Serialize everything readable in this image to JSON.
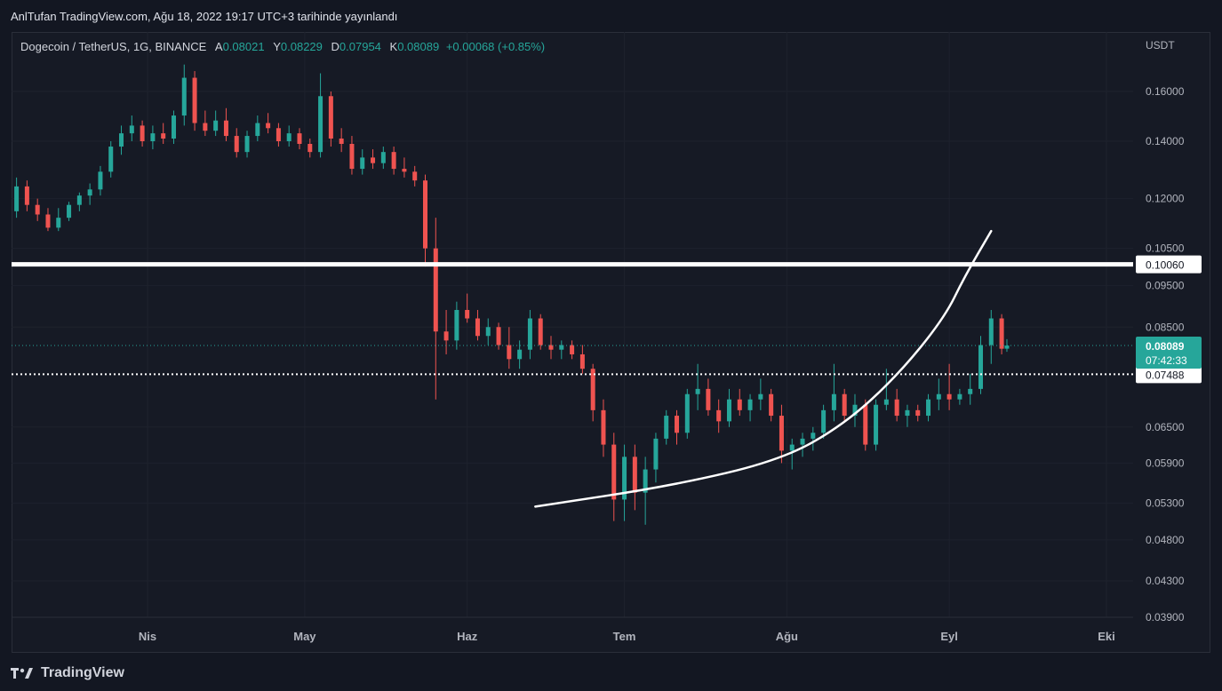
{
  "header": {
    "publisher_text": "AnlTufan TradingView.com, Ağu 18, 2022 19:17 UTC+3 tarihinde yayınlandı"
  },
  "legend": {
    "symbol": "Dogecoin / TetherUS, 1G, BINANCE",
    "open_label": "A",
    "open": "0.08021",
    "high_label": "Y",
    "high": "0.08229",
    "low_label": "D",
    "low": "0.07954",
    "close_label": "K",
    "close": "0.08089",
    "change": "+0.00068 (+0.85%)"
  },
  "footer": {
    "brand": "TradingView"
  },
  "colors": {
    "up": "#26a69a",
    "down": "#ef5350",
    "background": "#131722",
    "grid": "#1e222d",
    "line": "#ffffff"
  },
  "chart_data": {
    "type": "candlestick",
    "title": "Dogecoin / TetherUS, 1G, BINANCE",
    "y_axis_unit": "USDT",
    "y_scale": "log",
    "y_ticks": [
      "0.16000",
      "0.14000",
      "0.12000",
      "0.10500",
      "0.09500",
      "0.08500",
      "0.06500",
      "0.05900",
      "0.05300",
      "0.04800",
      "0.04300",
      "0.03900"
    ],
    "x_ticks": [
      "Nis",
      "May",
      "Haz",
      "Tem",
      "Ağu",
      "Eyl",
      "Eki"
    ],
    "x_tick_dates": [
      "2022-04-01",
      "2022-05-01",
      "2022-06-01",
      "2022-07-01",
      "2022-08-01",
      "2022-09-01",
      "2022-10-01"
    ],
    "horizontal_lines": [
      {
        "price": 0.1006,
        "label": "0.10060",
        "style": "solid"
      },
      {
        "price": 0.07488,
        "label": "0.07488",
        "style": "dotted"
      }
    ],
    "last_price": {
      "price": 0.08089,
      "label": "0.08089",
      "countdown": "07:42:33"
    },
    "curve_annotation": [
      {
        "date": "2022-06-14",
        "price": 0.0525
      },
      {
        "date": "2022-07-10",
        "price": 0.0555
      },
      {
        "date": "2022-07-31",
        "price": 0.0595
      },
      {
        "date": "2022-08-12",
        "price": 0.0655
      },
      {
        "date": "2022-08-22",
        "price": 0.0745
      },
      {
        "date": "2022-08-31",
        "price": 0.087
      },
      {
        "date": "2022-09-04",
        "price": 0.0975
      },
      {
        "date": "2022-09-09",
        "price": 0.11
      }
    ],
    "candles": [
      {
        "date": "2022-03-01",
        "o": 0.128,
        "h": 0.131,
        "l": 0.123,
        "c": 0.125
      },
      {
        "date": "2022-03-03",
        "o": 0.125,
        "h": 0.127,
        "l": 0.118,
        "c": 0.12
      },
      {
        "date": "2022-03-05",
        "o": 0.12,
        "h": 0.124,
        "l": 0.114,
        "c": 0.116
      },
      {
        "date": "2022-03-07",
        "o": 0.116,
        "h": 0.127,
        "l": 0.114,
        "c": 0.124
      },
      {
        "date": "2022-03-09",
        "o": 0.124,
        "h": 0.126,
        "l": 0.116,
        "c": 0.118
      },
      {
        "date": "2022-03-11",
        "o": 0.118,
        "h": 0.12,
        "l": 0.113,
        "c": 0.115
      },
      {
        "date": "2022-03-13",
        "o": 0.115,
        "h": 0.117,
        "l": 0.11,
        "c": 0.111
      },
      {
        "date": "2022-03-15",
        "o": 0.111,
        "h": 0.117,
        "l": 0.11,
        "c": 0.114
      },
      {
        "date": "2022-03-17",
        "o": 0.114,
        "h": 0.119,
        "l": 0.113,
        "c": 0.118
      },
      {
        "date": "2022-03-19",
        "o": 0.118,
        "h": 0.122,
        "l": 0.116,
        "c": 0.121
      },
      {
        "date": "2022-03-21",
        "o": 0.121,
        "h": 0.125,
        "l": 0.118,
        "c": 0.123
      },
      {
        "date": "2022-03-23",
        "o": 0.123,
        "h": 0.131,
        "l": 0.121,
        "c": 0.129
      },
      {
        "date": "2022-03-25",
        "o": 0.129,
        "h": 0.14,
        "l": 0.127,
        "c": 0.138
      },
      {
        "date": "2022-03-27",
        "o": 0.138,
        "h": 0.146,
        "l": 0.135,
        "c": 0.143
      },
      {
        "date": "2022-03-29",
        "o": 0.143,
        "h": 0.15,
        "l": 0.14,
        "c": 0.146
      },
      {
        "date": "2022-03-31",
        "o": 0.146,
        "h": 0.148,
        "l": 0.138,
        "c": 0.14
      },
      {
        "date": "2022-04-02",
        "o": 0.14,
        "h": 0.146,
        "l": 0.137,
        "c": 0.143
      },
      {
        "date": "2022-04-04",
        "o": 0.143,
        "h": 0.147,
        "l": 0.139,
        "c": 0.141
      },
      {
        "date": "2022-04-06",
        "o": 0.141,
        "h": 0.152,
        "l": 0.139,
        "c": 0.15
      },
      {
        "date": "2022-04-08",
        "o": 0.15,
        "h": 0.172,
        "l": 0.146,
        "c": 0.166
      },
      {
        "date": "2022-04-10",
        "o": 0.166,
        "h": 0.169,
        "l": 0.144,
        "c": 0.147
      },
      {
        "date": "2022-04-12",
        "o": 0.147,
        "h": 0.152,
        "l": 0.142,
        "c": 0.144
      },
      {
        "date": "2022-04-14",
        "o": 0.144,
        "h": 0.152,
        "l": 0.142,
        "c": 0.148
      },
      {
        "date": "2022-04-16",
        "o": 0.148,
        "h": 0.153,
        "l": 0.14,
        "c": 0.142
      },
      {
        "date": "2022-04-18",
        "o": 0.142,
        "h": 0.145,
        "l": 0.134,
        "c": 0.136
      },
      {
        "date": "2022-04-20",
        "o": 0.136,
        "h": 0.144,
        "l": 0.134,
        "c": 0.142
      },
      {
        "date": "2022-04-22",
        "o": 0.142,
        "h": 0.15,
        "l": 0.14,
        "c": 0.147
      },
      {
        "date": "2022-04-24",
        "o": 0.147,
        "h": 0.151,
        "l": 0.143,
        "c": 0.145
      },
      {
        "date": "2022-04-26",
        "o": 0.145,
        "h": 0.147,
        "l": 0.138,
        "c": 0.14
      },
      {
        "date": "2022-04-28",
        "o": 0.14,
        "h": 0.146,
        "l": 0.138,
        "c": 0.143
      },
      {
        "date": "2022-04-30",
        "o": 0.143,
        "h": 0.145,
        "l": 0.137,
        "c": 0.139
      },
      {
        "date": "2022-05-02",
        "o": 0.139,
        "h": 0.141,
        "l": 0.134,
        "c": 0.136
      },
      {
        "date": "2022-05-04",
        "o": 0.136,
        "h": 0.168,
        "l": 0.134,
        "c": 0.158
      },
      {
        "date": "2022-05-06",
        "o": 0.158,
        "h": 0.16,
        "l": 0.138,
        "c": 0.141
      },
      {
        "date": "2022-05-08",
        "o": 0.141,
        "h": 0.145,
        "l": 0.136,
        "c": 0.139
      },
      {
        "date": "2022-05-10",
        "o": 0.139,
        "h": 0.142,
        "l": 0.128,
        "c": 0.13
      },
      {
        "date": "2022-05-12",
        "o": 0.13,
        "h": 0.137,
        "l": 0.128,
        "c": 0.134
      },
      {
        "date": "2022-05-14",
        "o": 0.134,
        "h": 0.137,
        "l": 0.13,
        "c": 0.132
      },
      {
        "date": "2022-05-16",
        "o": 0.132,
        "h": 0.138,
        "l": 0.13,
        "c": 0.136
      },
      {
        "date": "2022-05-18",
        "o": 0.136,
        "h": 0.138,
        "l": 0.128,
        "c": 0.13
      },
      {
        "date": "2022-05-20",
        "o": 0.13,
        "h": 0.134,
        "l": 0.127,
        "c": 0.129
      },
      {
        "date": "2022-05-22",
        "o": 0.129,
        "h": 0.131,
        "l": 0.124,
        "c": 0.126
      },
      {
        "date": "2022-05-24",
        "o": 0.126,
        "h": 0.128,
        "l": 0.1,
        "c": 0.105
      },
      {
        "date": "2022-05-26",
        "o": 0.105,
        "h": 0.114,
        "l": 0.07,
        "c": 0.084
      },
      {
        "date": "2022-05-28",
        "o": 0.084,
        "h": 0.089,
        "l": 0.079,
        "c": 0.082
      },
      {
        "date": "2022-05-30",
        "o": 0.082,
        "h": 0.091,
        "l": 0.08,
        "c": 0.089
      },
      {
        "date": "2022-06-01",
        "o": 0.089,
        "h": 0.093,
        "l": 0.086,
        "c": 0.087
      },
      {
        "date": "2022-06-03",
        "o": 0.087,
        "h": 0.089,
        "l": 0.082,
        "c": 0.083
      },
      {
        "date": "2022-06-05",
        "o": 0.083,
        "h": 0.087,
        "l": 0.081,
        "c": 0.085
      },
      {
        "date": "2022-06-07",
        "o": 0.085,
        "h": 0.086,
        "l": 0.08,
        "c": 0.081
      },
      {
        "date": "2022-06-09",
        "o": 0.081,
        "h": 0.085,
        "l": 0.076,
        "c": 0.078
      },
      {
        "date": "2022-06-11",
        "o": 0.078,
        "h": 0.082,
        "l": 0.076,
        "c": 0.08
      },
      {
        "date": "2022-06-13",
        "o": 0.08,
        "h": 0.089,
        "l": 0.078,
        "c": 0.087
      },
      {
        "date": "2022-06-15",
        "o": 0.087,
        "h": 0.088,
        "l": 0.08,
        "c": 0.081
      },
      {
        "date": "2022-06-17",
        "o": 0.081,
        "h": 0.083,
        "l": 0.078,
        "c": 0.08
      },
      {
        "date": "2022-06-19",
        "o": 0.08,
        "h": 0.082,
        "l": 0.078,
        "c": 0.081
      },
      {
        "date": "2022-06-21",
        "o": 0.081,
        "h": 0.082,
        "l": 0.078,
        "c": 0.079
      },
      {
        "date": "2022-06-23",
        "o": 0.079,
        "h": 0.081,
        "l": 0.075,
        "c": 0.076
      },
      {
        "date": "2022-06-25",
        "o": 0.076,
        "h": 0.077,
        "l": 0.066,
        "c": 0.068
      },
      {
        "date": "2022-06-27",
        "o": 0.068,
        "h": 0.07,
        "l": 0.06,
        "c": 0.062
      },
      {
        "date": "2022-06-29",
        "o": 0.062,
        "h": 0.064,
        "l": 0.0505,
        "c": 0.0535
      },
      {
        "date": "2022-07-01",
        "o": 0.0535,
        "h": 0.062,
        "l": 0.0505,
        "c": 0.06
      },
      {
        "date": "2022-07-03",
        "o": 0.06,
        "h": 0.062,
        "l": 0.052,
        "c": 0.0545
      },
      {
        "date": "2022-07-05",
        "o": 0.0545,
        "h": 0.06,
        "l": 0.05,
        "c": 0.058
      },
      {
        "date": "2022-07-07",
        "o": 0.058,
        "h": 0.064,
        "l": 0.056,
        "c": 0.063
      },
      {
        "date": "2022-07-09",
        "o": 0.063,
        "h": 0.068,
        "l": 0.062,
        "c": 0.067
      },
      {
        "date": "2022-07-11",
        "o": 0.067,
        "h": 0.068,
        "l": 0.062,
        "c": 0.064
      },
      {
        "date": "2022-07-13",
        "o": 0.064,
        "h": 0.072,
        "l": 0.063,
        "c": 0.071
      },
      {
        "date": "2022-07-15",
        "o": 0.071,
        "h": 0.077,
        "l": 0.068,
        "c": 0.072
      },
      {
        "date": "2022-07-17",
        "o": 0.072,
        "h": 0.074,
        "l": 0.067,
        "c": 0.068
      },
      {
        "date": "2022-07-19",
        "o": 0.068,
        "h": 0.07,
        "l": 0.064,
        "c": 0.066
      },
      {
        "date": "2022-07-21",
        "o": 0.066,
        "h": 0.072,
        "l": 0.065,
        "c": 0.07
      },
      {
        "date": "2022-07-23",
        "o": 0.07,
        "h": 0.072,
        "l": 0.067,
        "c": 0.068
      },
      {
        "date": "2022-07-25",
        "o": 0.068,
        "h": 0.071,
        "l": 0.066,
        "c": 0.07
      },
      {
        "date": "2022-07-27",
        "o": 0.07,
        "h": 0.074,
        "l": 0.068,
        "c": 0.071
      },
      {
        "date": "2022-07-29",
        "o": 0.071,
        "h": 0.072,
        "l": 0.066,
        "c": 0.067
      },
      {
        "date": "2022-07-31",
        "o": 0.067,
        "h": 0.069,
        "l": 0.059,
        "c": 0.061
      },
      {
        "date": "2022-08-02",
        "o": 0.061,
        "h": 0.063,
        "l": 0.058,
        "c": 0.062
      },
      {
        "date": "2022-08-04",
        "o": 0.062,
        "h": 0.064,
        "l": 0.06,
        "c": 0.063
      },
      {
        "date": "2022-08-06",
        "o": 0.063,
        "h": 0.065,
        "l": 0.061,
        "c": 0.064
      },
      {
        "date": "2022-08-08",
        "o": 0.064,
        "h": 0.069,
        "l": 0.063,
        "c": 0.068
      },
      {
        "date": "2022-08-10",
        "o": 0.068,
        "h": 0.077,
        "l": 0.066,
        "c": 0.071
      },
      {
        "date": "2022-08-12",
        "o": 0.071,
        "h": 0.072,
        "l": 0.066,
        "c": 0.067
      },
      {
        "date": "2022-08-14",
        "o": 0.067,
        "h": 0.071,
        "l": 0.065,
        "c": 0.069
      },
      {
        "date": "2022-08-16",
        "o": 0.069,
        "h": 0.07,
        "l": 0.061,
        "c": 0.062
      },
      {
        "date": "2022-08-18",
        "o": 0.062,
        "h": 0.07,
        "l": 0.061,
        "c": 0.069
      },
      {
        "date": "2022-08-20",
        "o": 0.069,
        "h": 0.076,
        "l": 0.068,
        "c": 0.07
      },
      {
        "date": "2022-08-22",
        "o": 0.07,
        "h": 0.072,
        "l": 0.066,
        "c": 0.067
      },
      {
        "date": "2022-08-24",
        "o": 0.067,
        "h": 0.069,
        "l": 0.065,
        "c": 0.068
      },
      {
        "date": "2022-08-26",
        "o": 0.068,
        "h": 0.069,
        "l": 0.066,
        "c": 0.067
      },
      {
        "date": "2022-08-28",
        "o": 0.067,
        "h": 0.071,
        "l": 0.066,
        "c": 0.07
      },
      {
        "date": "2022-08-30",
        "o": 0.07,
        "h": 0.074,
        "l": 0.068,
        "c": 0.071
      },
      {
        "date": "2022-09-01",
        "o": 0.071,
        "h": 0.077,
        "l": 0.068,
        "c": 0.07
      },
      {
        "date": "2022-09-03",
        "o": 0.07,
        "h": 0.072,
        "l": 0.069,
        "c": 0.071
      },
      {
        "date": "2022-09-05",
        "o": 0.071,
        "h": 0.075,
        "l": 0.069,
        "c": 0.072
      },
      {
        "date": "2022-09-07",
        "o": 0.072,
        "h": 0.083,
        "l": 0.071,
        "c": 0.081
      },
      {
        "date": "2022-09-09",
        "o": 0.081,
        "h": 0.089,
        "l": 0.077,
        "c": 0.087
      },
      {
        "date": "2022-09-11",
        "o": 0.087,
        "h": 0.088,
        "l": 0.079,
        "c": 0.0802
      },
      {
        "date": "2022-09-12",
        "o": 0.08021,
        "h": 0.08229,
        "l": 0.07954,
        "c": 0.08089
      }
    ]
  }
}
